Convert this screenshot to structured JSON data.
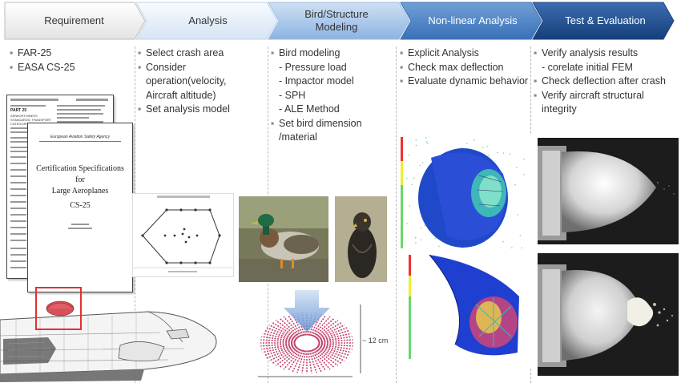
{
  "stages": [
    {
      "label": "Requirement",
      "fill": "#f2f2f2",
      "text_color": "#333333"
    },
    {
      "label": "Analysis",
      "fill": "#e9f1fa",
      "text_color": "#333333"
    },
    {
      "label": "Bird/Structure Modeling",
      "fill": "#a9c7e9",
      "text_color": "#333333"
    },
    {
      "label": "Non-linear Analysis",
      "fill": "#4f86c6",
      "text_color": "#ffffff"
    },
    {
      "label": "Test & Evaluation",
      "fill": "#1f4f90",
      "text_color": "#ffffff"
    }
  ],
  "columns": {
    "requirement": {
      "items": [
        {
          "text": "FAR-25"
        },
        {
          "text": "EASA CS-25"
        }
      ]
    },
    "analysis": {
      "items": [
        {
          "text": "Select crash area"
        },
        {
          "text": "Consider",
          "continuation": [
            "operation(velocity,",
            "Aircraft altitude)"
          ]
        },
        {
          "text": "Set analysis model"
        }
      ]
    },
    "modeling": {
      "items": [
        {
          "text": "Bird modeling"
        }
      ],
      "subitems": [
        "- Pressure load",
        "- Impactor model",
        "- SPH",
        "- ALE Method"
      ],
      "items2": [
        {
          "text": "Set bird dimension",
          "continuation": [
            "/material"
          ]
        }
      ]
    },
    "nonlinear": {
      "items": [
        {
          "text": "Explicit  Analysis"
        },
        {
          "text": "Check max deflection"
        },
        {
          "text": "Evaluate dynamic behavior"
        }
      ]
    },
    "test": {
      "items": [
        {
          "text": "Verify analysis results",
          "continuation": [
            " - corelate initial FEM"
          ]
        },
        {
          "text": "Check deflection after crash"
        },
        {
          "text": "Verify aircraft structural",
          "continuation": [
            "integrity"
          ]
        }
      ]
    }
  },
  "bullet_char": "▪",
  "documents": {
    "far": {
      "part": "PART 25",
      "heading": "AIRWORTHINESS STANDARDS: TRANSPORT CATEGORY AIRPLANES"
    },
    "easa": {
      "agency": "European Aviation Safety Agency",
      "title_lines": [
        "Certification Specifications",
        "for",
        "Large Aeroplanes",
        "CS-25"
      ]
    }
  },
  "figures": {
    "bird_dimension": "~ 12 cm",
    "highlight_color": "#e53030",
    "mesh_color": "#c2406a",
    "arrow_color": "#7fa8d8"
  }
}
